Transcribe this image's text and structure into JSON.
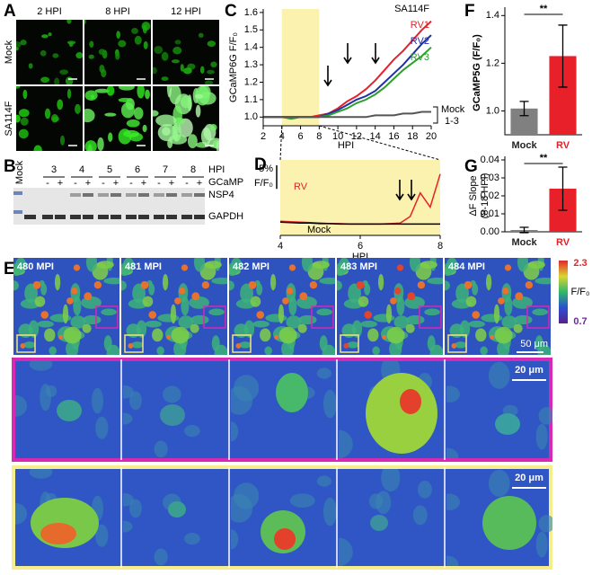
{
  "panel_labels": [
    "A",
    "B",
    "C",
    "D",
    "E",
    "F",
    "G"
  ],
  "panel_a": {
    "columns": [
      "2 HPI",
      "8 HPI",
      "12 HPI"
    ],
    "rows": [
      "Mock",
      "SA114F"
    ]
  },
  "panel_b": {
    "mock": "Mock",
    "lanes": [
      "3",
      "4",
      "5",
      "6",
      "7",
      "8"
    ],
    "lane_axis": "HPI",
    "gcamp_label": "GCaMP",
    "gcamp_signs": [
      "-",
      "+",
      "-",
      "+",
      "-",
      "+",
      "-",
      "+",
      "-",
      "+",
      "-",
      "+"
    ],
    "bands": [
      "NSP4",
      "GAPDH"
    ]
  },
  "panel_e": {
    "frames": [
      "480 MPI",
      "481 MPI",
      "482 MPI",
      "483 MPI",
      "484 MPI"
    ],
    "colorbar": {
      "max": 2.3,
      "min": 0.7,
      "label": "F/F₀"
    },
    "scale_bars": [
      "50 μm",
      "20 μm",
      "20 μm"
    ]
  },
  "chart_data": [
    {
      "type": "line",
      "annotation": "SA114F",
      "y_label": "GCaMP6G F/F₀",
      "x_label": "HPI",
      "x": [
        2,
        3,
        4,
        5,
        6,
        7,
        8,
        9,
        10,
        11,
        12,
        13,
        14,
        15,
        16,
        17,
        18,
        19,
        20
      ],
      "series": [
        {
          "name": "RV1",
          "color": "#e8202a",
          "values": [
            1.0,
            1.0,
            1.0,
            1.0,
            1.0,
            1.0,
            1.01,
            1.02,
            1.05,
            1.09,
            1.12,
            1.16,
            1.21,
            1.27,
            1.33,
            1.38,
            1.44,
            1.5,
            1.55
          ]
        },
        {
          "name": "RV2",
          "color": "#1f2fa8",
          "values": [
            1.0,
            1.0,
            1.0,
            1.0,
            1.0,
            1.0,
            1.0,
            1.02,
            1.04,
            1.07,
            1.1,
            1.12,
            1.15,
            1.2,
            1.25,
            1.3,
            1.36,
            1.42,
            1.47
          ]
        },
        {
          "name": "RV3",
          "color": "#2ca02c",
          "values": [
            1.0,
            1.0,
            1.0,
            0.99,
            1.0,
            1.0,
            1.0,
            1.01,
            1.03,
            1.05,
            1.08,
            1.1,
            1.13,
            1.17,
            1.22,
            1.27,
            1.31,
            1.35,
            1.4
          ]
        },
        {
          "name": "Mock",
          "color": "#555555",
          "values": [
            1.0,
            1.0,
            1.0,
            1.0,
            1.0,
            1.0,
            1.0,
            1.0,
            1.0,
            1.0,
            1.0,
            1.0,
            1.01,
            1.01,
            1.01,
            1.02,
            1.02,
            1.03,
            1.03
          ]
        }
      ],
      "mock_note": "1-3",
      "xlim": [
        2,
        20
      ],
      "ylim": [
        0.95,
        1.62
      ],
      "xticks": [
        2,
        4,
        6,
        8,
        10,
        12,
        14,
        16,
        18,
        20
      ],
      "yticks": [
        {
          "value": 1,
          "label": "1.0"
        },
        1.1,
        1.2,
        1.3,
        1.4,
        1.5,
        1.6
      ],
      "shaded": [
        4,
        8
      ]
    },
    {
      "type": "line",
      "x_label": "HPI",
      "x": [
        4,
        4.25,
        4.5,
        4.75,
        5,
        5.25,
        5.5,
        5.75,
        6,
        6.25,
        6.5,
        6.75,
        7,
        7.25,
        7.5,
        7.75,
        8
      ],
      "series": [
        {
          "name": "RV",
          "color": "#e8202a",
          "values": [
            1.0,
            0.999,
            0.998,
            0.997,
            0.996,
            0.995,
            0.995,
            0.994,
            0.994,
            0.994,
            0.994,
            0.995,
            0.996,
            1.01,
            1.06,
            1.03,
            1.1
          ]
        },
        {
          "name": "Mock",
          "color": "#000000",
          "values": [
            0.998,
            0.997,
            0.996,
            0.996,
            0.995,
            0.995,
            0.994,
            0.994,
            0.994,
            0.994,
            0.994,
            0.994,
            0.994,
            0.994,
            0.994,
            0.994,
            0.994
          ]
        }
      ],
      "xlim": [
        4,
        8
      ],
      "ylim": [
        0.97,
        1.13
      ],
      "xticks": [
        4,
        6,
        8
      ],
      "scale_bar": {
        "value": 0.05,
        "label": "5%"
      },
      "scale_unit": "F/F₀"
    },
    {
      "type": "bar",
      "y_label": "GCaMP5G (F/F₀)",
      "categories": [
        "Mock",
        "RV"
      ],
      "values": [
        1.01,
        1.23
      ],
      "errors": [
        0.03,
        0.13
      ],
      "colors": [
        "#808080",
        "#e8202a"
      ],
      "ylim": [
        0.9,
        1.42
      ],
      "yticks": [
        {
          "value": 1,
          "label": "1.0"
        },
        1.2,
        1.4
      ],
      "significance": "**"
    },
    {
      "type": "bar",
      "y_label": [
        "ΔF Slope",
        "(8-18 HPI)"
      ],
      "categories": [
        "Mock",
        "RV"
      ],
      "values": [
        0.001,
        0.024
      ],
      "errors": [
        0.0015,
        0.012
      ],
      "colors": [
        "#808080",
        "#e8202a"
      ],
      "ylim": [
        0,
        0.04
      ],
      "yticks": [
        {
          "value": 0,
          "label": "0.00"
        },
        0.01,
        0.02,
        0.03,
        0.04
      ],
      "significance": "**"
    }
  ]
}
